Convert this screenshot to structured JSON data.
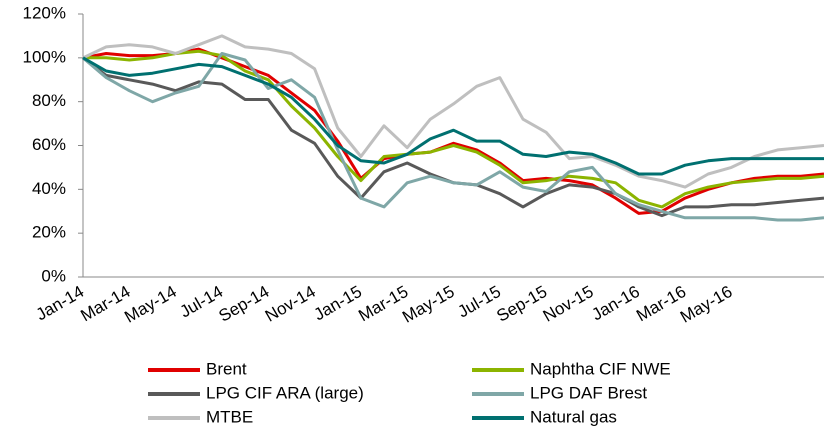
{
  "chart_data": {
    "type": "line",
    "categories": [
      "Jan-14",
      null,
      "Mar-14",
      null,
      "May-14",
      null,
      "Jul-14",
      null,
      "Sep-14",
      null,
      "Nov-14",
      null,
      "Jan-15",
      null,
      "Mar-15",
      null,
      "May-15",
      null,
      "Jul-15",
      null,
      "Sep-15",
      null,
      "Nov-15",
      null,
      "Jan-16",
      null,
      "Mar-16",
      null,
      "May-16",
      null,
      null,
      null,
      null
    ],
    "series": [
      {
        "name": "Brent",
        "color": "#e00000",
        "values": [
          100,
          102,
          101,
          101,
          102,
          104,
          100,
          96,
          92,
          84,
          76,
          62,
          45,
          54,
          56,
          57,
          61,
          58,
          52,
          44,
          45,
          44,
          42,
          36,
          29,
          30,
          36,
          40,
          43,
          45,
          46,
          46,
          47
        ]
      },
      {
        "name": "Naphtha CIF NWE",
        "color": "#8cb400",
        "values": [
          100,
          100,
          99,
          100,
          102,
          103,
          101,
          94,
          90,
          78,
          68,
          55,
          44,
          55,
          56,
          57,
          60,
          57,
          51,
          43,
          44,
          46,
          45,
          43,
          35,
          32,
          38,
          41,
          43,
          44,
          45,
          45,
          46
        ]
      },
      {
        "name": "LPG CIF ARA (large)",
        "color": "#595959",
        "values": [
          100,
          92,
          90,
          88,
          85,
          89,
          88,
          81,
          81,
          67,
          61,
          46,
          36,
          48,
          52,
          47,
          43,
          42,
          38,
          32,
          38,
          42,
          41,
          38,
          32,
          28,
          32,
          32,
          33,
          33,
          34,
          35,
          36
        ]
      },
      {
        "name": "LPG DAF Brest",
        "color": "#7fa7a7",
        "values": [
          100,
          91,
          85,
          80,
          84,
          87,
          102,
          99,
          86,
          90,
          82,
          58,
          36,
          32,
          43,
          46,
          43,
          42,
          48,
          41,
          39,
          48,
          50,
          38,
          33,
          30,
          27,
          27,
          27,
          27,
          26,
          26,
          27
        ]
      },
      {
        "name": "MTBE",
        "color": "#bfbfbf",
        "values": [
          100,
          105,
          106,
          105,
          102,
          106,
          110,
          105,
          104,
          102,
          95,
          68,
          55,
          69,
          59,
          72,
          79,
          87,
          91,
          72,
          66,
          54,
          55,
          51,
          46,
          44,
          41,
          47,
          50,
          55,
          58,
          59,
          60
        ]
      },
      {
        "name": "Natural gas",
        "color": "#007070",
        "values": [
          100,
          94,
          92,
          93,
          95,
          97,
          96,
          92,
          88,
          82,
          72,
          60,
          53,
          52,
          56,
          63,
          67,
          62,
          62,
          56,
          55,
          57,
          56,
          52,
          47,
          47,
          51,
          53,
          54,
          54,
          54,
          54,
          54
        ]
      }
    ],
    "ylim": [
      0,
      120
    ],
    "yticks": [
      {
        "value": 0,
        "label": "0%"
      },
      {
        "value": 20,
        "label": "20%"
      },
      {
        "value": 40,
        "label": "40%"
      },
      {
        "value": 60,
        "label": "60%"
      },
      {
        "value": 80,
        "label": "80%"
      },
      {
        "value": 100,
        "label": "100%"
      },
      {
        "value": 120,
        "label": "120%"
      }
    ],
    "legend": "bottom"
  }
}
